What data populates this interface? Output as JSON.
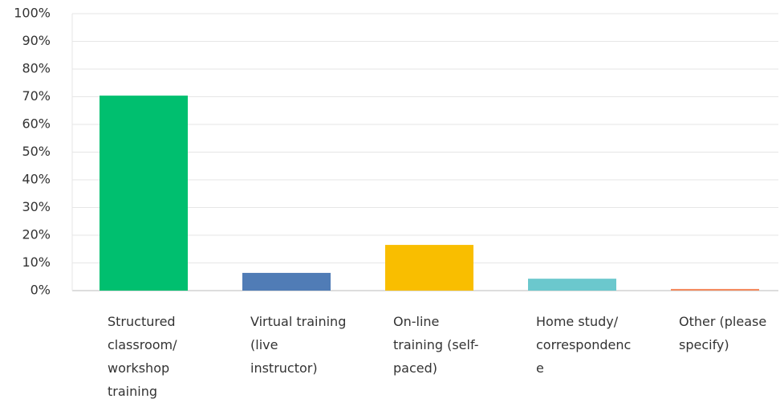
{
  "chart_data": {
    "type": "bar",
    "categories": [
      "Structured classroom/ workshop training",
      "Virtual training (live instructor)",
      "On-line training (self-paced)",
      "Home study/ correspondence",
      "Other (please specify)"
    ],
    "values": [
      70.4,
      6.4,
      16.5,
      4.3,
      0.6
    ],
    "colors": [
      "#00bf6f",
      "#507cb6",
      "#f9be00",
      "#6bc8cd",
      "#f48a5e"
    ],
    "ylim": [
      0,
      100
    ],
    "yticks": [
      {
        "value": 0,
        "label": "0%"
      },
      {
        "value": 10,
        "label": "10%"
      },
      {
        "value": 20,
        "label": "20%"
      },
      {
        "value": 30,
        "label": "30%"
      },
      {
        "value": 40,
        "label": "40%"
      },
      {
        "value": 50,
        "label": "50%"
      },
      {
        "value": 60,
        "label": "60%"
      },
      {
        "value": 70,
        "label": "70%"
      },
      {
        "value": 80,
        "label": "80%"
      },
      {
        "value": 90,
        "label": "90%"
      },
      {
        "value": 100,
        "label": "100%"
      }
    ],
    "grid": true
  }
}
